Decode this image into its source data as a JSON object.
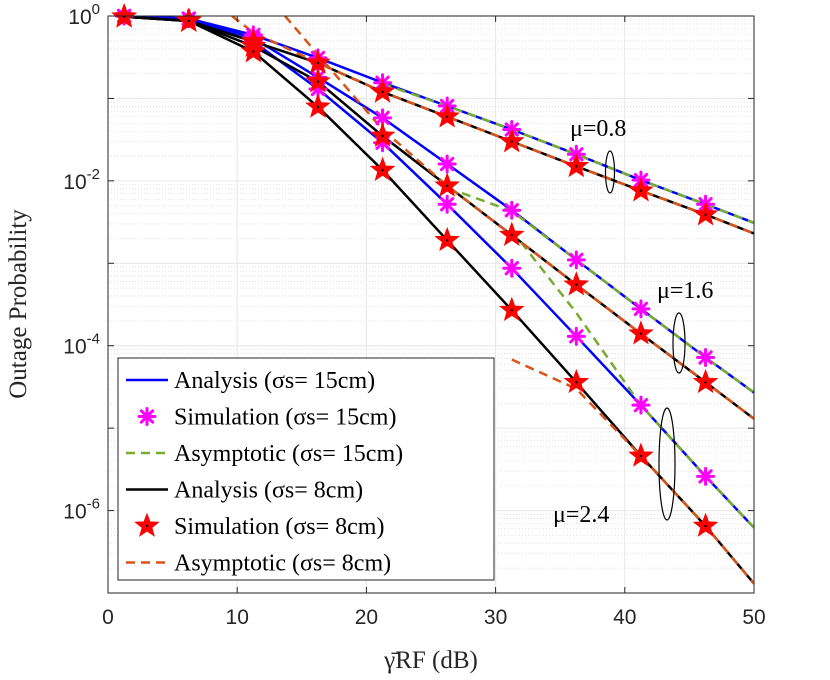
{
  "chart_data": {
    "type": "line",
    "title": "",
    "xlabel": "γ̄RF (dB)",
    "ylabel": "Outage Probability",
    "xlim": [
      0,
      50
    ],
    "ylim": [
      1e-07,
      1
    ],
    "yscale": "log",
    "grid": true,
    "legend_placement": "bottom-left",
    "xticks": [
      0,
      10,
      20,
      30,
      40,
      50
    ],
    "xtick_labels": [
      "0",
      "10",
      "20",
      "30",
      "40",
      "50"
    ],
    "yticks": [
      1,
      0.01,
      0.0001,
      1e-06
    ],
    "ytick_labels": [
      {
        "base": "10",
        "exp": "0"
      },
      {
        "base": "10",
        "exp": "-2"
      },
      {
        "base": "10",
        "exp": "-4"
      },
      {
        "base": "10",
        "exp": "-6"
      }
    ],
    "annotations": [
      "μ=0.8",
      "μ=1.6",
      "μ=2.4"
    ],
    "legend": [
      {
        "label": "Analysis (σs= 15cm)",
        "color": "#0000ff",
        "style": "solid",
        "marker": "none"
      },
      {
        "label": "Simulation (σs= 15cm)",
        "color": "#ff00ff",
        "style": "none",
        "marker": "asterisk"
      },
      {
        "label": "Asymptotic (σs= 15cm)",
        "color": "#77ac30",
        "style": "dashed",
        "marker": "none"
      },
      {
        "label": "Analysis (σs= 8cm)",
        "color": "#000000",
        "style": "solid",
        "marker": "none"
      },
      {
        "label": "Simulation (σs= 8cm)",
        "color": "#ff0000",
        "style": "none",
        "marker": "star"
      },
      {
        "label": "Asymptotic (σs= 8cm)",
        "color": "#d95319",
        "style": "dashed",
        "marker": "none"
      }
    ],
    "series": [
      {
        "name": "Analysis σs=15cm μ=0.8",
        "legend": 0,
        "x": [
          1.25,
          6.25,
          11.25,
          16.25,
          21.25,
          26.25,
          31.25,
          36.25,
          41.25,
          46.25,
          50
        ],
        "y": [
          1,
          0.93,
          0.59,
          0.31,
          0.155,
          0.081,
          0.042,
          0.021,
          0.0102,
          0.0052,
          0.0031
        ]
      },
      {
        "name": "Analysis σs=15cm μ=1.6",
        "legend": 0,
        "x": [
          1.25,
          6.25,
          11.25,
          16.25,
          21.25,
          26.25,
          31.25,
          36.25,
          41.25,
          46.25,
          50
        ],
        "y": [
          1,
          0.93,
          0.54,
          0.18,
          0.058,
          0.016,
          0.0044,
          0.0011,
          0.00028,
          7.2e-05,
          2.7e-05
        ]
      },
      {
        "name": "Analysis σs=15cm μ=2.4",
        "legend": 0,
        "x": [
          1.25,
          6.25,
          11.25,
          16.25,
          21.25,
          26.25,
          31.25,
          36.25,
          41.25,
          46.25,
          50
        ],
        "y": [
          1,
          0.93,
          0.49,
          0.13,
          0.029,
          0.0052,
          0.00087,
          0.00013,
          1.9e-05,
          2.6e-06,
          6.2e-07
        ]
      },
      {
        "name": "Simulation σs=15cm μ=0.8",
        "legend": 1,
        "x": [
          1.25,
          6.25,
          11.25,
          16.25,
          21.25,
          26.25,
          31.25,
          36.25,
          41.25,
          46.25
        ],
        "y": [
          1,
          0.93,
          0.59,
          0.31,
          0.155,
          0.081,
          0.042,
          0.021,
          0.0102,
          0.0052
        ]
      },
      {
        "name": "Simulation σs=15cm μ=1.6",
        "legend": 1,
        "x": [
          1.25,
          6.25,
          11.25,
          16.25,
          21.25,
          26.25,
          31.25,
          36.25,
          41.25,
          46.25
        ],
        "y": [
          1,
          0.93,
          0.54,
          0.18,
          0.058,
          0.016,
          0.0044,
          0.0011,
          0.00028,
          7.2e-05
        ]
      },
      {
        "name": "Simulation σs=15cm μ=2.4",
        "legend": 1,
        "x": [
          1.25,
          6.25,
          11.25,
          16.25,
          21.25,
          26.25,
          31.25,
          36.25,
          41.25,
          46.25
        ],
        "y": [
          1,
          0.93,
          0.49,
          0.13,
          0.029,
          0.0052,
          0.00087,
          0.00013,
          1.9e-05,
          2.6e-06
        ]
      },
      {
        "name": "Asymptotic σs=15cm μ=0.8",
        "legend": 2,
        "x": [
          21.25,
          26.25,
          31.25,
          36.25,
          41.25,
          46.25,
          50
        ],
        "y": [
          0.15,
          0.081,
          0.042,
          0.021,
          0.0102,
          0.0052,
          0.0031
        ]
      },
      {
        "name": "Asymptotic σs=15cm μ=1.6",
        "legend": 2,
        "x": [
          27.4,
          31.25,
          36.25,
          41.25,
          46.25,
          50
        ],
        "y": [
          0.0071,
          0.0043,
          0.0011,
          0.00028,
          7.2e-05,
          2.7e-05
        ]
      },
      {
        "name": "Asymptotic σs=15cm μ=2.4",
        "legend": 2,
        "x": [
          31.25,
          36.25,
          41.25,
          46.25,
          50
        ],
        "y": [
          0.0025,
          0.00025,
          1.9e-05,
          2.6e-06,
          6.2e-07
        ]
      },
      {
        "name": "Analysis σs=8cm μ=0.8",
        "legend": 3,
        "x": [
          1.25,
          6.25,
          11.25,
          16.25,
          21.25,
          26.25,
          31.25,
          36.25,
          41.25,
          46.25,
          50
        ],
        "y": [
          0.98,
          0.87,
          0.49,
          0.27,
          0.12,
          0.06,
          0.03,
          0.015,
          0.0076,
          0.0039,
          0.0023
        ]
      },
      {
        "name": "Analysis σs=8cm μ=1.6",
        "legend": 3,
        "x": [
          1.25,
          6.25,
          11.25,
          16.25,
          21.25,
          26.25,
          31.25,
          36.25,
          41.25,
          46.25,
          50
        ],
        "y": [
          0.98,
          0.87,
          0.43,
          0.16,
          0.035,
          0.0087,
          0.0022,
          0.00055,
          0.00014,
          3.6e-05,
          1.3e-05
        ]
      },
      {
        "name": "Analysis σs=8cm μ=2.4",
        "legend": 3,
        "x": [
          1.25,
          6.25,
          11.25,
          16.25,
          21.25,
          26.25,
          31.25,
          36.25,
          41.25,
          46.25,
          50
        ],
        "y": [
          0.98,
          0.87,
          0.37,
          0.079,
          0.0135,
          0.0019,
          0.00027,
          3.6e-05,
          4.6e-06,
          6.5e-07,
          1.3e-07
        ]
      },
      {
        "name": "Simulation σs=8cm μ=0.8",
        "legend": 4,
        "x": [
          1.25,
          6.25,
          11.25,
          16.25,
          21.25,
          26.25,
          31.25,
          36.25,
          41.25,
          46.25
        ],
        "y": [
          0.98,
          0.87,
          0.49,
          0.27,
          0.12,
          0.06,
          0.03,
          0.015,
          0.0076,
          0.0039
        ]
      },
      {
        "name": "Simulation σs=8cm μ=1.6",
        "legend": 4,
        "x": [
          1.25,
          6.25,
          11.25,
          16.25,
          21.25,
          26.25,
          31.25,
          36.25,
          41.25,
          46.25
        ],
        "y": [
          0.98,
          0.87,
          0.43,
          0.16,
          0.035,
          0.0087,
          0.0022,
          0.00055,
          0.00014,
          3.6e-05
        ]
      },
      {
        "name": "Simulation σs=8cm μ=2.4",
        "legend": 4,
        "x": [
          1.25,
          6.25,
          11.25,
          16.25,
          21.25,
          26.25,
          31.25,
          36.25,
          41.25,
          46.25
        ],
        "y": [
          0.98,
          0.87,
          0.37,
          0.079,
          0.0135,
          0.0019,
          0.00027,
          3.6e-05,
          4.6e-06,
          6.5e-07
        ]
      },
      {
        "name": "Asymptotic σs=8cm μ=0.8",
        "legend": 5,
        "x": [
          9.6,
          11.25,
          16.25,
          21.25,
          26.25,
          31.25,
          36.25,
          41.25,
          46.25,
          50
        ],
        "y": [
          1,
          0.63,
          0.27,
          0.12,
          0.06,
          0.03,
          0.015,
          0.0076,
          0.0039,
          0.0023
        ]
      },
      {
        "name": "Asymptotic σs=8cm μ=1.6",
        "legend": 5,
        "x": [
          13.7,
          16.25,
          21.25,
          26.25,
          31.25,
          36.25,
          41.25,
          46.25,
          50
        ],
        "y": [
          1,
          0.34,
          0.042,
          0.0087,
          0.0022,
          0.00055,
          0.00014,
          3.6e-05,
          1.3e-05
        ]
      },
      {
        "name": "Asymptotic σs=8cm μ=2.4",
        "legend": 5,
        "x": [
          31.25,
          36.25,
          41.25,
          46.25,
          50
        ],
        "y": [
          6.8e-05,
          3e-05,
          4.6e-06,
          6.5e-07,
          1.3e-07
        ]
      }
    ]
  }
}
